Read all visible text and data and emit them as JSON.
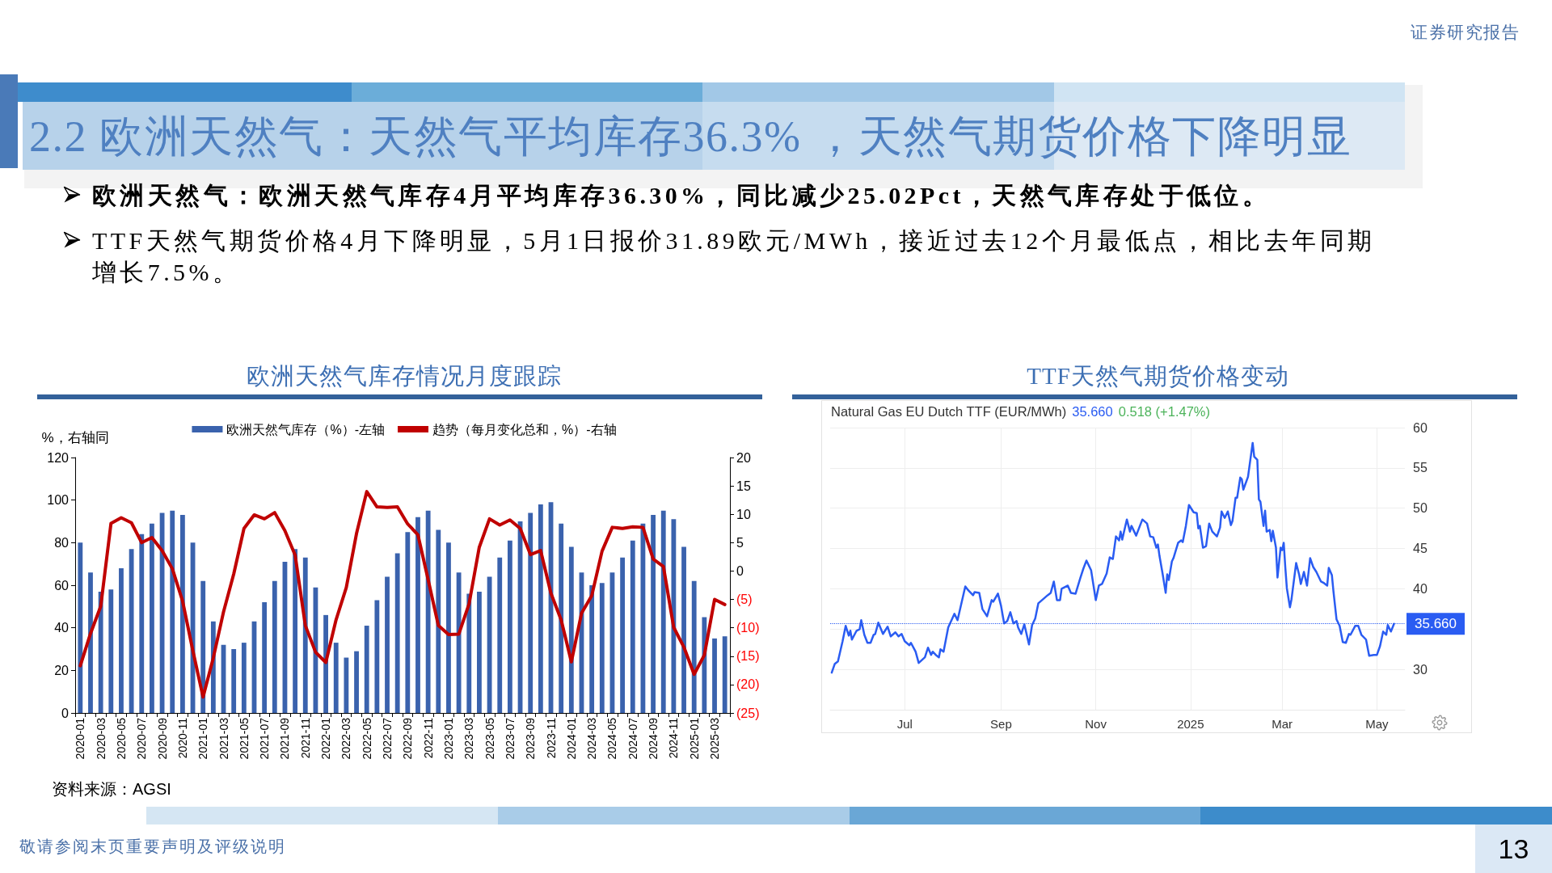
{
  "chart_data": [
    {
      "type": "other",
      "title": "2.2 欧洲天然气：天然气平均库存36.3% ，天然气期货价格下降明显",
      "annotations": [
        "欧洲天然气：欧洲天然气库存4月平均库存36.30%，同比减少25.02Pct，天然气库存处于低位。",
        "TTF天然气期货价格4月下降明显，5月1日报价31.89欧元/MWh，接近过去12个月最低点，相比去年同期增长7.5%。",
        "证券研究报告",
        "敬请参阅末页重要声明及评级说明",
        "13"
      ]
    },
    {
      "type": "bar",
      "title": "欧洲天然气库存情况月度跟踪",
      "ylabel": "%，右轴同",
      "categories": [
        "2020-01",
        null,
        "2020-03",
        null,
        "2020-05",
        null,
        "2020-07",
        null,
        "2020-09",
        null,
        "2020-11",
        null,
        "2021-01",
        null,
        "2021-03",
        null,
        "2021-05",
        null,
        "2021-07",
        null,
        "2021-09",
        null,
        "2021-11",
        null,
        "2022-01",
        null,
        "2022-03",
        null,
        "2022-05",
        null,
        "2022-07",
        null,
        "2022-09",
        null,
        "2022-11",
        null,
        "2023-01",
        null,
        "2023-03",
        null,
        "2023-05",
        null,
        "2023-07",
        null,
        "2023-09",
        null,
        "2023-11",
        null,
        "2024-01",
        null,
        "2024-03",
        null,
        "2024-05",
        null,
        "2024-07",
        null,
        "2024-09",
        null,
        "2024-11",
        null,
        "2025-01",
        null,
        "2025-03",
        null
      ],
      "series": [
        {
          "name": "欧洲天然气库存（%）-左轴",
          "type": "bar",
          "color": "#3a62ad",
          "values": [
            80,
            66,
            57,
            58,
            68,
            77,
            84,
            89,
            94,
            95,
            93,
            80,
            62,
            43,
            32,
            30,
            33,
            43,
            52,
            62,
            71,
            77,
            73,
            59,
            46,
            33,
            26,
            29,
            41,
            53,
            64,
            75,
            85,
            92,
            95,
            86,
            80,
            66,
            56,
            57,
            64,
            73,
            81,
            90,
            94,
            98,
            99,
            89,
            78,
            66,
            60,
            61,
            66,
            73,
            81,
            89,
            93,
            95,
            91,
            78,
            62,
            45,
            35,
            36
          ]
        },
        {
          "name": "趋势（每月变化总和，%）-右轴",
          "type": "line",
          "axis": "y2",
          "color": "#c00000",
          "values": [
            -16.7,
            -11.0,
            -6.2,
            8.4,
            9.4,
            8.5,
            5.0,
            5.9,
            3.6,
            0.4,
            -5.3,
            -14.0,
            -22.2,
            -15.3,
            -7.2,
            -0.5,
            7.5,
            9.9,
            9.2,
            10.3,
            7.1,
            2.8,
            -9.6,
            -14.3,
            -16.1,
            -8.6,
            -2.9,
            6.6,
            14.0,
            11.3,
            11.2,
            11.3,
            8.3,
            6.4,
            -1.5,
            -9.6,
            -11.2,
            -11.1,
            -5.8,
            4.2,
            9.2,
            8.1,
            9.0,
            7.5,
            2.9,
            3.6,
            -3.9,
            -8.6,
            -16.0,
            -7.4,
            -4.3,
            3.5,
            7.7,
            7.5,
            7.8,
            7.7,
            2.1,
            0.8,
            -9.9,
            -13.4,
            -18.2,
            -14.8,
            -5.0,
            -5.9
          ]
        }
      ],
      "ylim": [
        0,
        120
      ],
      "yticks": [
        0,
        20,
        40,
        60,
        80,
        100,
        120
      ],
      "y2lim": [
        -25,
        20
      ],
      "y2ticks": [
        {
          "value": -25,
          "label": "(25)"
        },
        {
          "value": -20,
          "label": "(20)"
        },
        {
          "value": -15,
          "label": "(15)"
        },
        {
          "value": -10,
          "label": "(10)"
        },
        {
          "value": -5,
          "label": "(5)"
        },
        0,
        5,
        10,
        15,
        20
      ],
      "legend": "top",
      "grid": false,
      "annotations": [
        "资料来源：AGSI"
      ]
    },
    {
      "type": "line",
      "title": "TTF天然气期货价格变动",
      "subtitle": "Natural Gas EU Dutch TTF (EUR/MWh)",
      "annotations": [
        "35.660",
        "0.518 (+1.47%)"
      ],
      "x": [
        "2024-05-15",
        "2024-05-17",
        "2024-05-19",
        "2024-05-22",
        "2024-05-24",
        "2024-05-26",
        "2024-05-27",
        "2024-05-28",
        "2024-05-31",
        "2024-06-02",
        "2024-06-03",
        "2024-06-05",
        "2024-06-07",
        "2024-06-09",
        "2024-06-11",
        "2024-06-12",
        "2024-06-14",
        "2024-06-17",
        "2024-06-20",
        "2024-06-22",
        "2024-06-25",
        "2024-06-27",
        "2024-06-29",
        "2024-07-01",
        "2024-07-04",
        "2024-07-05",
        "2024-07-08",
        "2024-07-10",
        "2024-07-14",
        "2024-07-16",
        "2024-07-18",
        "2024-07-19",
        "2024-07-21",
        "2024-07-23",
        "2024-07-24",
        "2024-07-26",
        "2024-07-29",
        "2024-08-02",
        "2024-08-04",
        "2024-08-09",
        "2024-08-11",
        "2024-08-14",
        "2024-08-15",
        "2024-08-18",
        "2024-08-20",
        "2024-08-23",
        "2024-08-26",
        "2024-08-27",
        "2024-08-30",
        "2024-09-01",
        "2024-09-03",
        "2024-09-05",
        "2024-09-07",
        "2024-09-09",
        "2024-09-11",
        "2024-09-12",
        "2024-09-14",
        "2024-09-16",
        "2024-09-19",
        "2024-09-21",
        "2024-09-23",
        "2024-09-25",
        "2024-09-28",
        "2024-10-01",
        "2024-10-03",
        "2024-10-05",
        "2024-10-07",
        "2024-10-09",
        "2024-10-10",
        "2024-10-12",
        "2024-10-14",
        "2024-10-16",
        "2024-10-19",
        "2024-10-22",
        "2024-10-24",
        "2024-10-26",
        "2024-10-29",
        "2024-11-01",
        "2024-11-03",
        "2024-11-05",
        "2024-11-08",
        "2024-11-10",
        "2024-11-12",
        "2024-11-14",
        "2024-11-16",
        "2024-11-17",
        "2024-11-18",
        "2024-11-21",
        "2024-11-23",
        "2024-11-24",
        "2024-11-27",
        "2024-12-01",
        "2024-12-04",
        "2024-12-06",
        "2024-12-08",
        "2024-12-10",
        "2024-12-11",
        "2024-12-12",
        "2024-12-14",
        "2024-12-16",
        "2024-12-17",
        "2024-12-18",
        "2024-12-20",
        "2024-12-21",
        "2024-12-24",
        "2024-12-26",
        "2024-12-27",
        "2024-12-29",
        "2024-12-31",
        "2025-01-03",
        "2025-01-05",
        "2025-01-06",
        "2025-01-07",
        "2025-01-09",
        "2025-01-11",
        "2025-01-13",
        "2025-01-15",
        "2025-01-18",
        "2025-01-20",
        "2025-01-21",
        "2025-01-23",
        "2025-01-25",
        "2025-01-27",
        "2025-01-28",
        "2025-01-30",
        "2025-01-31",
        "2025-02-02",
        "2025-02-03",
        "2025-02-04",
        "2025-02-07",
        "2025-02-10",
        "2025-02-11",
        "2025-02-13",
        "2025-02-14",
        "2025-02-15",
        "2025-02-17",
        "2025-02-18",
        "2025-02-19",
        "2025-02-21",
        "2025-02-22",
        "2025-02-23",
        "2025-02-25",
        "2025-02-26",
        "2025-02-28",
        "2025-03-01",
        "2025-03-02",
        "2025-03-03",
        "2025-03-04",
        "2025-03-06",
        "2025-03-07",
        "2025-03-10",
        "2025-03-12",
        "2025-03-13",
        "2025-03-15",
        "2025-03-17",
        "2025-03-19",
        "2025-03-21",
        "2025-03-23",
        "2025-03-26",
        "2025-03-28",
        "2025-03-30",
        "2025-03-31",
        "2025-04-02",
        "2025-04-03",
        "2025-04-05",
        "2025-04-07",
        "2025-04-09",
        "2025-04-11",
        "2025-04-13",
        "2025-04-14",
        "2025-04-17",
        "2025-04-19",
        "2025-04-21",
        "2025-04-24",
        "2025-04-26",
        "2025-04-29",
        "2025-05-01",
        "2025-05-03",
        "2025-05-05",
        "2025-05-07",
        "2025-05-08",
        "2025-05-10",
        "2025-05-12"
      ],
      "series": [
        {
          "color": "#2a5cf2",
          "values": [
            29.6,
            30.7,
            31.0,
            33.5,
            35.4,
            34.2,
            34.8,
            33.7,
            34.8,
            35.0,
            36.1,
            34.3,
            33.3,
            33.3,
            34.3,
            34.4,
            35.8,
            34.4,
            35.3,
            34.1,
            34.6,
            34.1,
            34.4,
            33.5,
            33.0,
            33.3,
            32.2,
            30.8,
            31.5,
            32.7,
            31.8,
            32.2,
            31.8,
            31.5,
            32.5,
            32.2,
            35.2,
            36.9,
            36.1,
            40.3,
            39.8,
            39.2,
            39.6,
            39.5,
            37.5,
            36.6,
            38.6,
            38.4,
            39.4,
            37.9,
            35.7,
            36.0,
            37.1,
            35.7,
            36.0,
            35.2,
            34.4,
            35.6,
            33.1,
            35.5,
            36.3,
            38.2,
            38.7,
            39.2,
            39.5,
            40.9,
            38.6,
            38.6,
            40.0,
            40.2,
            40.4,
            39.5,
            39.4,
            41.3,
            42.5,
            43.5,
            42.3,
            38.6,
            40.4,
            40.6,
            41.9,
            43.9,
            43.7,
            46.5,
            46.0,
            47.1,
            46.1,
            48.6,
            47.1,
            47.8,
            46.6,
            48.6,
            48.1,
            46.5,
            46.4,
            45.1,
            45.5,
            44.1,
            41.9,
            39.5,
            41.8,
            41.1,
            43.4,
            43.8,
            45.7,
            46.0,
            45.8,
            47.8,
            50.4,
            49.5,
            49.4,
            47.5,
            47.8,
            45.1,
            45.3,
            48.1,
            47.1,
            46.5,
            47.6,
            49.6,
            48.8,
            49.6,
            47.9,
            48.4,
            51.3,
            51.3,
            53.8,
            53.6,
            52.3,
            53.9,
            58.1,
            56.4,
            56.0,
            51.1,
            50.8,
            47.8,
            49.7,
            47.1,
            47.3,
            45.9,
            47.2,
            45.1,
            41.4,
            45.1,
            44.8,
            45.7,
            42.7,
            40.1,
            37.7,
            38.7,
            43.2,
            41.7,
            40.6,
            42.1,
            40.4,
            43.8,
            42.7,
            42.1,
            40.9,
            40.7,
            40.4,
            42.6,
            41.7,
            39.7,
            36.2,
            35.4,
            33.4,
            33.3,
            34.4,
            34.3,
            35.4,
            35.4,
            34.3,
            33.7,
            31.7,
            31.8,
            31.8,
            32.9,
            34.7,
            34.3,
            35.5,
            34.7,
            35.66
          ]
        }
      ],
      "xlim": [
        "2024-05-14",
        "2025-05-19"
      ],
      "xticks": [
        {
          "value": "2024-07-01",
          "label": "Jul"
        },
        {
          "value": "2024-09-01",
          "label": "Sep"
        },
        {
          "value": "2024-11-01",
          "label": "Nov"
        },
        {
          "value": "2025-01-01",
          "label": "2025"
        },
        {
          "value": "2025-03-01",
          "label": "Mar"
        },
        {
          "value": "2025-05-01",
          "label": "May"
        }
      ],
      "ylim": [
        25,
        60
      ],
      "yticks": [
        {
          "value": 25,
          "label": null
        },
        30,
        {
          "value": 35,
          "label": null
        },
        40,
        45,
        50,
        55,
        60
      ],
      "grid": true,
      "ref_lines": [
        {
          "axis": "y",
          "value": 35.66,
          "label": "35.660",
          "line_style": "dotted",
          "color": "#2a5cf2"
        }
      ]
    }
  ]
}
